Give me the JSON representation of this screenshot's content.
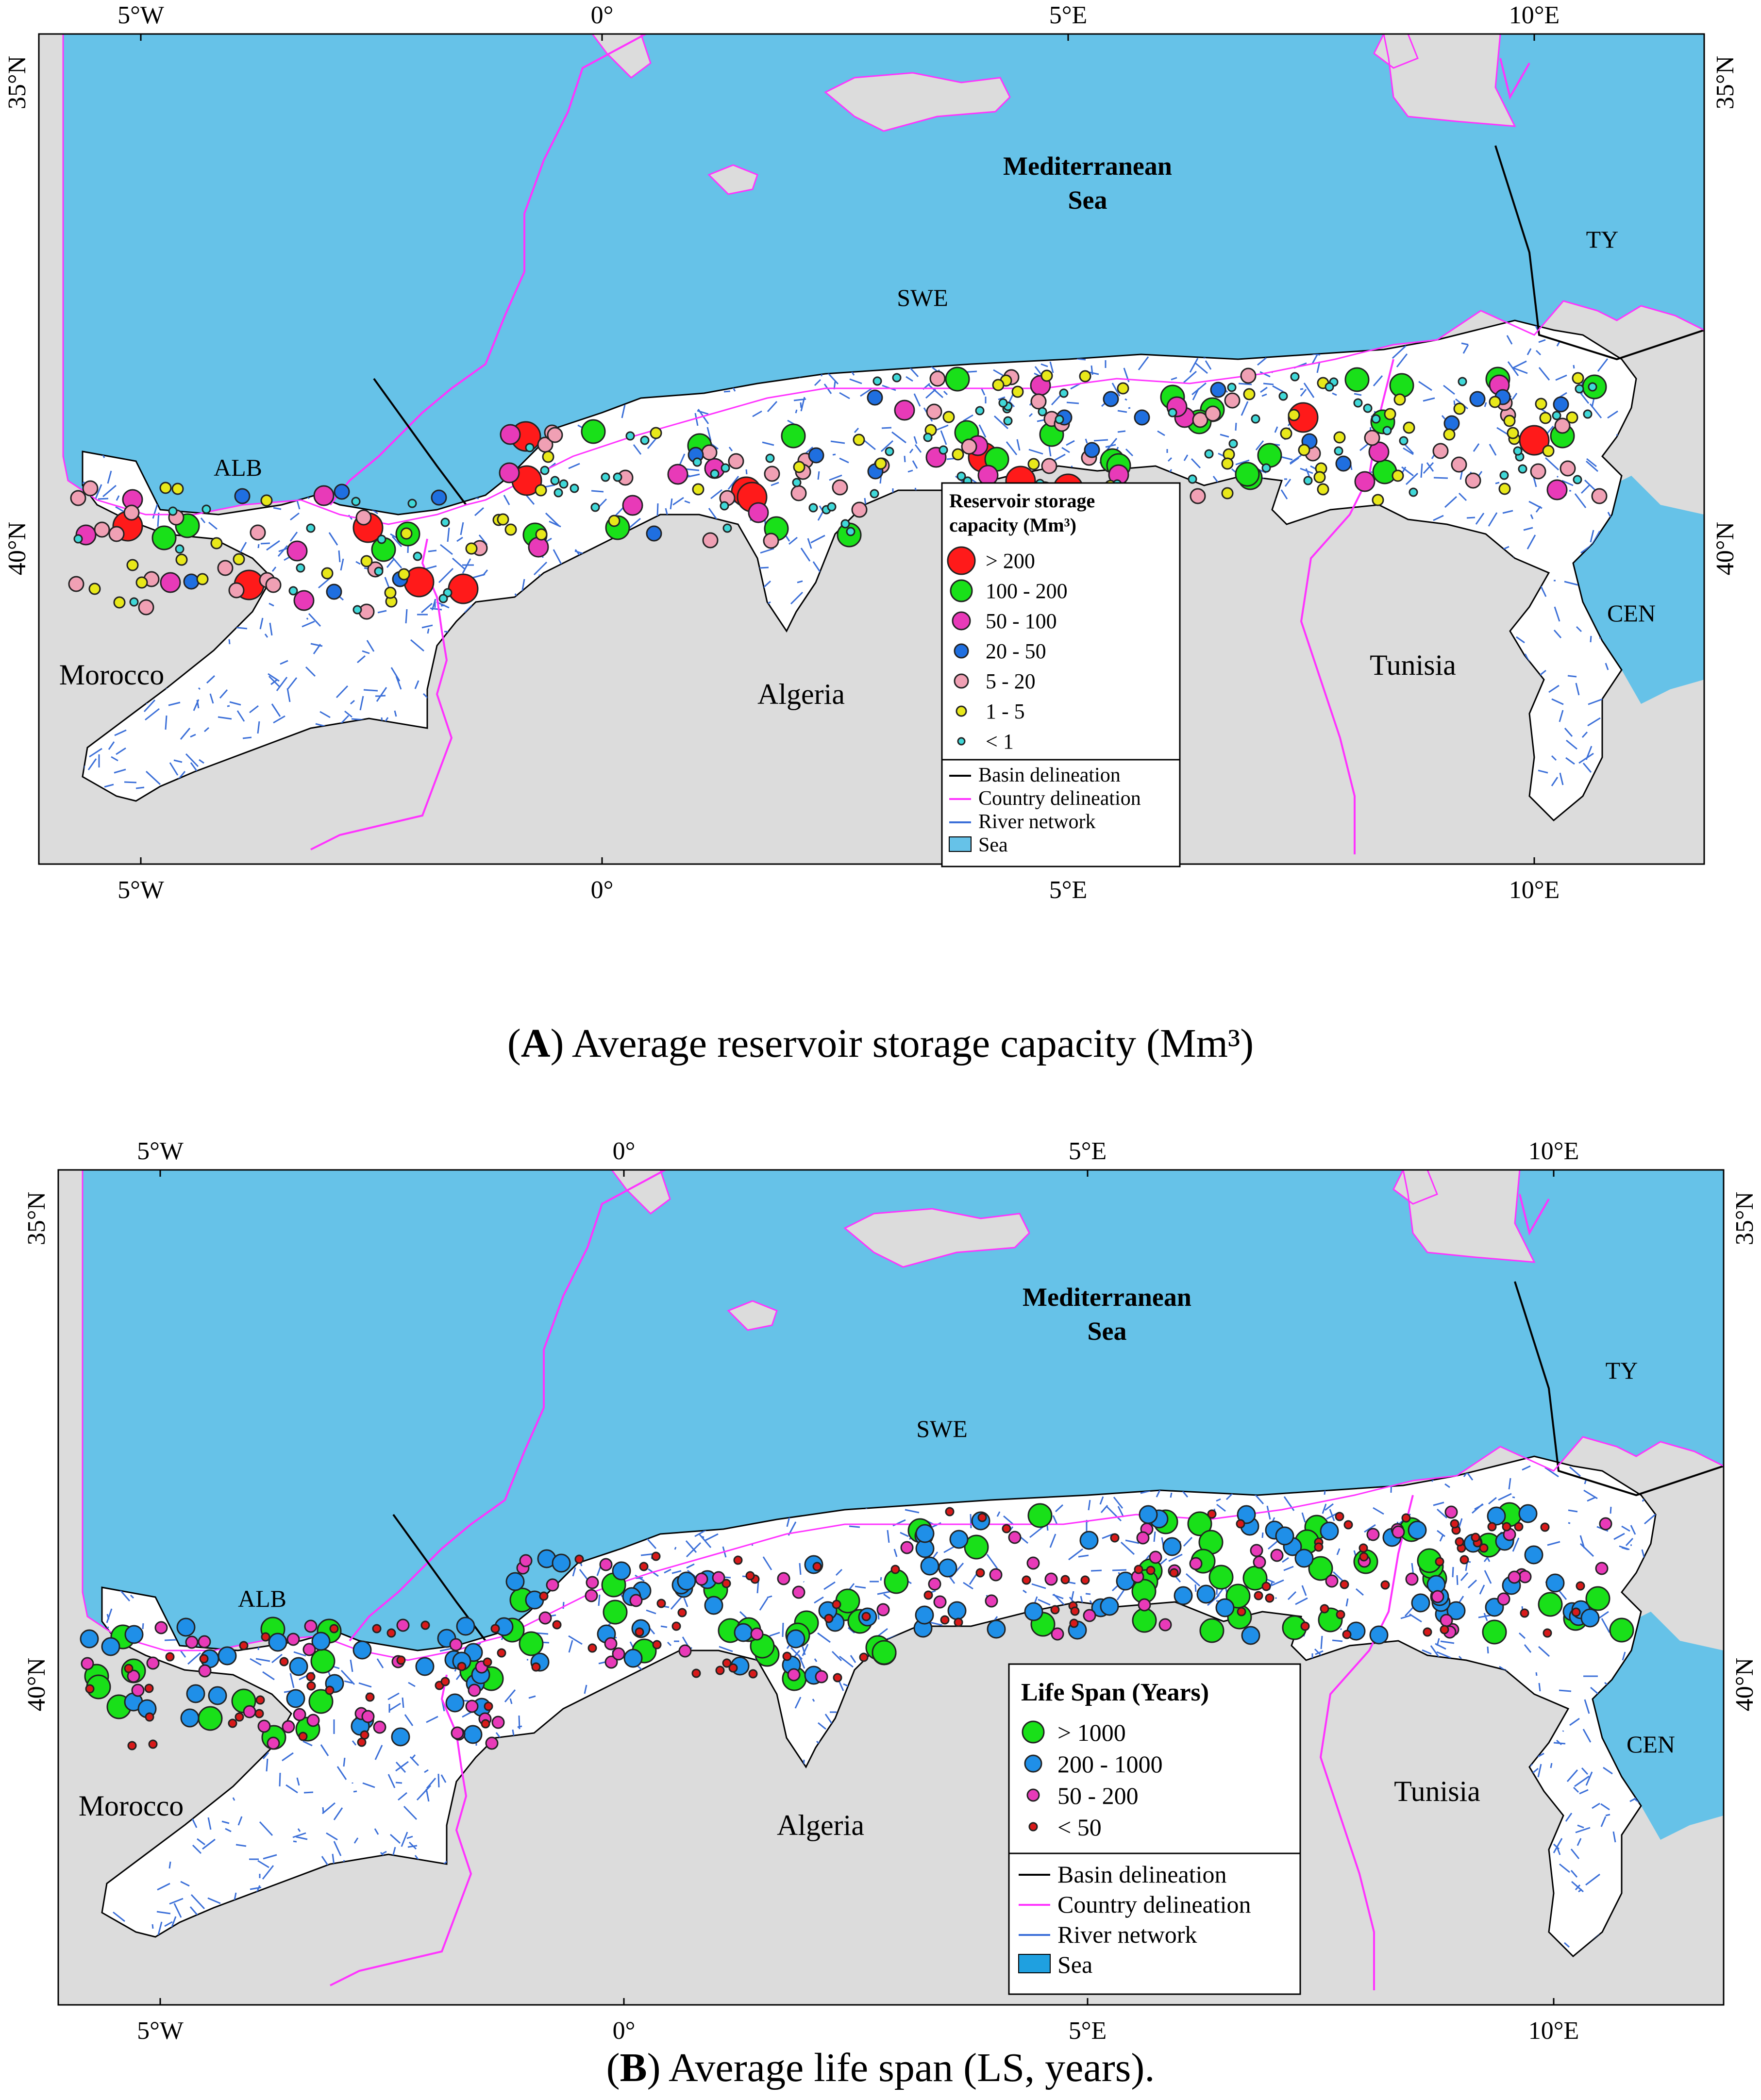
{
  "colors": {
    "land": "#dcdcdc",
    "sea": "#66c2e8",
    "basin_fill": "#ffffff",
    "river": "#3b6fd8",
    "basin_line": "#000000",
    "country_line": "#ff33ff",
    "frame": "#000000"
  },
  "axes": {
    "lon_ticks": [
      "5°W",
      "0°",
      "5°E",
      "10°E"
    ],
    "lat_ticks": [
      "35°N",
      "40°N"
    ]
  },
  "regions": {
    "sea_name_1": "Mediterranean",
    "sea_name_2": "Sea",
    "swe": "SWE",
    "alb": "ALB",
    "ty": "TY",
    "cen": "CEN",
    "morocco": "Morocco",
    "algeria": "Algeria",
    "tunisia": "Tunisia"
  },
  "panel_a": {
    "caption_letter": "A",
    "caption_text": ") Average reservoir storage capacity (Mm³)",
    "legend_title_1": "Reservoir storage",
    "legend_title_2": "capacity (Mm³)",
    "classes": [
      {
        "label": "> 200",
        "color": "#ff1a1a"
      },
      {
        "label": "100 - 200",
        "color": "#19e019"
      },
      {
        "label": "50 - 100",
        "color": "#e83ab8"
      },
      {
        "label": "20 - 50",
        "color": "#1f6fe0"
      },
      {
        "label": "5 - 20",
        "color": "#f0a0b4"
      },
      {
        "label": "1 - 5",
        "color": "#e8e81a"
      },
      {
        "label": "< 1",
        "color": "#40d8d8"
      }
    ],
    "line_legend": [
      "Basin delineation",
      "Country delineation",
      "River network",
      "Sea"
    ]
  },
  "panel_b": {
    "caption_letter": "B",
    "caption_text": ") Average life span (LS, years).",
    "legend_title": "Life Span (Years)",
    "classes": [
      {
        "label": "> 1000",
        "color": "#19e019"
      },
      {
        "label": "200 - 1000",
        "color": "#1f8fe8"
      },
      {
        "label": "50 - 200",
        "color": "#e83ab8"
      },
      {
        "label": "< 50",
        "color": "#d81a1a"
      }
    ],
    "line_legend": [
      "Basin delineation",
      "Country delineation",
      "River network",
      "Sea"
    ]
  }
}
